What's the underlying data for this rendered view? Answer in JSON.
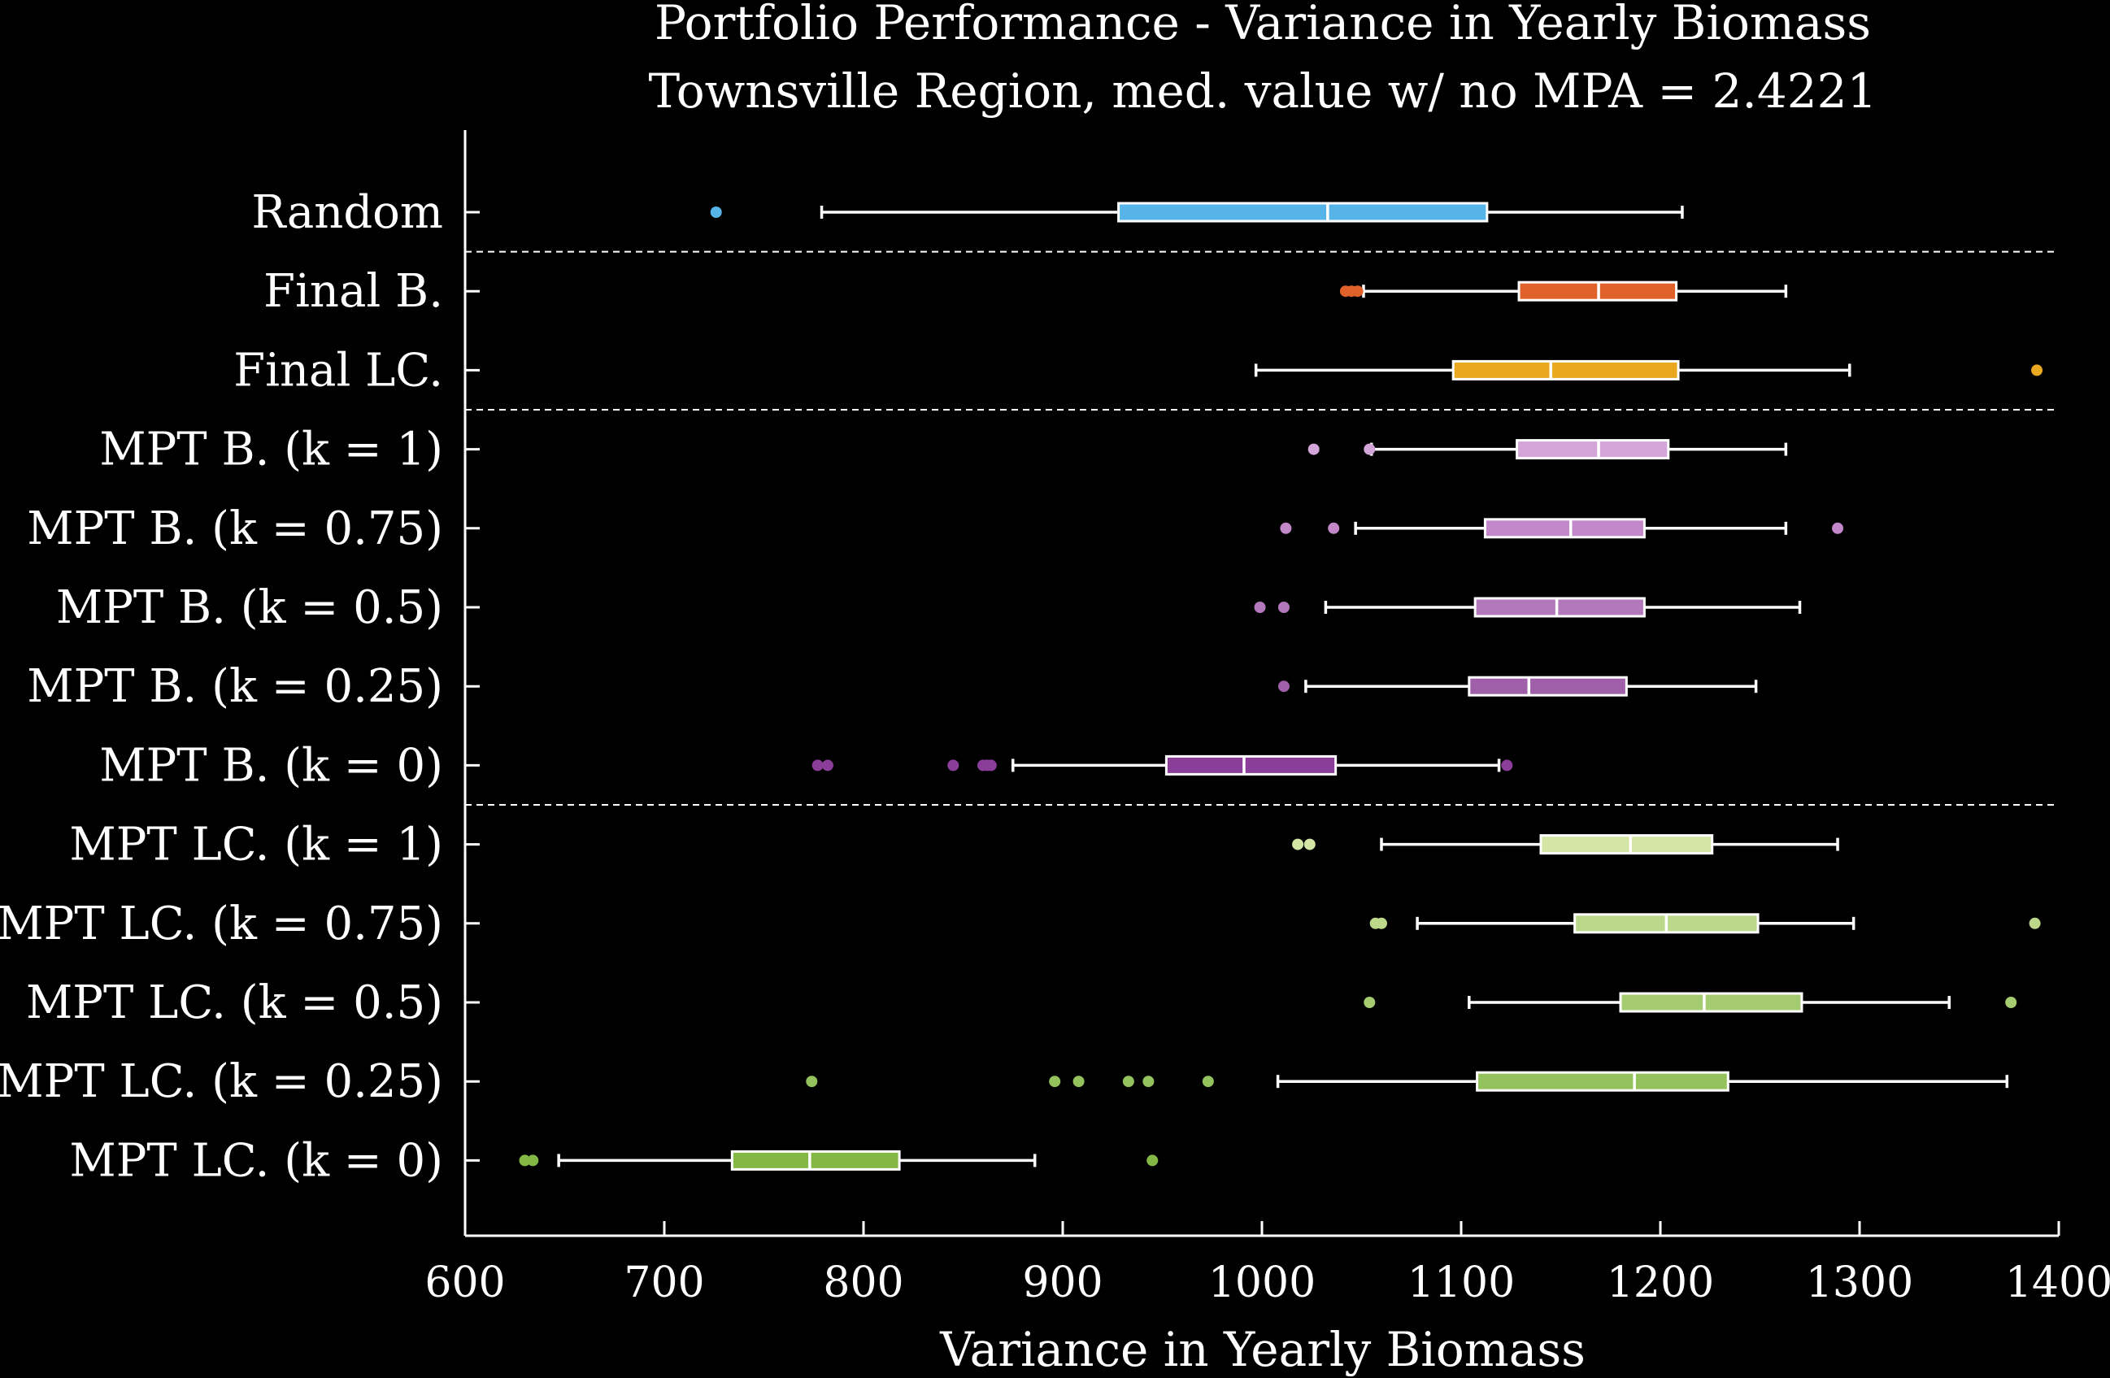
{
  "chart_data": {
    "type": "boxplot",
    "title": "Portfolio Performance - Variance in Yearly Biomass",
    "subtitle": "Townsville Region, med. value w/ no MPA = 2.4221",
    "xlabel": "Variance in Yearly Biomass",
    "ylabel": "",
    "xlim": [
      600,
      1400
    ],
    "xticks": [
      "600",
      "700",
      "800",
      "900",
      "1000",
      "1100",
      "1200",
      "1300",
      "1400"
    ],
    "orientation": "horizontal",
    "grid": false,
    "group_separators_after": [
      "Random",
      "Final LC.",
      "MPT B. (k = 0)"
    ],
    "series": [
      {
        "name": "Random",
        "color": "#56b4e9",
        "whisker_low": 779,
        "q1": 928,
        "median": 1033,
        "q3": 1113,
        "whisker_high": 1211,
        "outliers": [
          726
        ]
      },
      {
        "name": "Final B.",
        "color": "#e0622a",
        "whisker_low": 1051,
        "q1": 1129,
        "median": 1169,
        "q3": 1208,
        "whisker_high": 1263,
        "outliers": [
          1042,
          1045,
          1048
        ]
      },
      {
        "name": "Final LC.",
        "color": "#e9a820",
        "whisker_low": 997,
        "q1": 1096,
        "median": 1145,
        "q3": 1209,
        "whisker_high": 1295,
        "outliers": [
          1389
        ]
      },
      {
        "name": "MPT B. (k = 1)",
        "color": "#d4a5d8",
        "whisker_low": 1055,
        "q1": 1128,
        "median": 1169,
        "q3": 1204,
        "whisker_high": 1263,
        "outliers": [
          1026,
          1054
        ]
      },
      {
        "name": "MPT B. (k = 0.75)",
        "color": "#c388c9",
        "whisker_low": 1047,
        "q1": 1112,
        "median": 1155,
        "q3": 1192,
        "whisker_high": 1263,
        "outliers": [
          1012,
          1036,
          1289
        ]
      },
      {
        "name": "MPT B. (k = 0.5)",
        "color": "#b278bb",
        "whisker_low": 1032,
        "q1": 1107,
        "median": 1148,
        "q3": 1192,
        "whisker_high": 1270,
        "outliers": [
          999,
          1011
        ]
      },
      {
        "name": "MPT B. (k = 0.25)",
        "color": "#a060a9",
        "whisker_low": 1022,
        "q1": 1104,
        "median": 1134,
        "q3": 1183,
        "whisker_high": 1248,
        "outliers": [
          1011
        ]
      },
      {
        "name": "MPT B. (k = 0)",
        "color": "#8a3e9a",
        "whisker_low": 875,
        "q1": 952,
        "median": 991,
        "q3": 1037,
        "whisker_high": 1119,
        "outliers": [
          777,
          782,
          845,
          860,
          862,
          864,
          1123
        ]
      },
      {
        "name": "MPT LC. (k = 1)",
        "color": "#d4e6a5",
        "whisker_low": 1060,
        "q1": 1140,
        "median": 1185,
        "q3": 1226,
        "whisker_high": 1289,
        "outliers": [
          1018,
          1024
        ]
      },
      {
        "name": "MPT LC. (k = 0.75)",
        "color": "#bcd88a",
        "whisker_low": 1078,
        "q1": 1157,
        "median": 1203,
        "q3": 1249,
        "whisker_high": 1297,
        "outliers": [
          1057,
          1060,
          1388
        ]
      },
      {
        "name": "MPT LC. (k = 0.5)",
        "color": "#a5cc70",
        "whisker_low": 1104,
        "q1": 1180,
        "median": 1222,
        "q3": 1271,
        "whisker_high": 1345,
        "outliers": [
          1054,
          1376
        ]
      },
      {
        "name": "MPT LC. (k = 0.25)",
        "color": "#94c25c",
        "whisker_low": 1008,
        "q1": 1108,
        "median": 1187,
        "q3": 1234,
        "whisker_high": 1374,
        "outliers": [
          774,
          896,
          908,
          933,
          943,
          973
        ]
      },
      {
        "name": "MPT LC. (k = 0)",
        "color": "#84b846",
        "whisker_low": 647,
        "q1": 734,
        "median": 773,
        "q3": 818,
        "whisker_high": 886,
        "outliers": [
          630,
          634,
          945
        ]
      }
    ]
  }
}
